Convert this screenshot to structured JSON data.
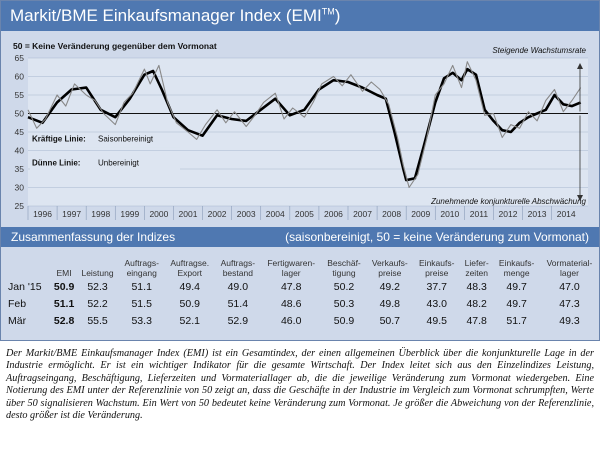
{
  "header": {
    "title": "Markit/BME Einkaufsmanager Index (EMI",
    "title_sup": "TM",
    "title_close": ")"
  },
  "chart_data": {
    "type": "line",
    "ylim": [
      25,
      65
    ],
    "yticks": [
      25,
      30,
      35,
      40,
      45,
      50,
      55,
      60,
      65
    ],
    "x_categories": [
      "1996",
      "1997",
      "1998",
      "1999",
      "2000",
      "2001",
      "2002",
      "2003",
      "2004",
      "2005",
      "2006",
      "2007",
      "2008",
      "2009",
      "2010",
      "2011",
      "2012",
      "2013",
      "2014"
    ],
    "reference_line": 50,
    "annotations": {
      "reference_note": "50 = Keine Veränderung gegenüber dem Vormonat",
      "top_right": "Steigende Wachstumsrate",
      "bottom_right": "Zunehmende konjunkturelle Abschwächung",
      "legend_bold_label": "Kräftige Linie:",
      "legend_bold_text": "Saisonbereinigt",
      "legend_thin_label": "Dünne Linie:",
      "legend_thin_text": "Unbereinigt"
    },
    "series": [
      {
        "name": "Saisonbereinigt",
        "style": "bold",
        "color": "#000000",
        "x": [
          1996.0,
          1996.5,
          1997.0,
          1997.5,
          1998.0,
          1998.5,
          1999.0,
          1999.5,
          2000.0,
          2000.3,
          2000.6,
          2001.0,
          2001.5,
          2002.0,
          2002.5,
          2003.0,
          2003.5,
          2004.0,
          2004.5,
          2005.0,
          2005.5,
          2006.0,
          2006.5,
          2007.0,
          2007.5,
          2008.0,
          2008.3,
          2008.6,
          2008.9,
          2009.0,
          2009.3,
          2009.6,
          2010.0,
          2010.3,
          2010.6,
          2010.9,
          2011.1,
          2011.4,
          2011.7,
          2012.0,
          2012.3,
          2012.6,
          2012.9,
          2013.2,
          2013.5,
          2013.8,
          2014.1,
          2014.4,
          2014.7,
          2015.0
        ],
        "values": [
          49.0,
          47.5,
          53.0,
          56.5,
          57.0,
          51.0,
          49.0,
          54.0,
          60.5,
          61.5,
          56.5,
          49.0,
          45.5,
          44.0,
          49.5,
          48.5,
          48.0,
          51.0,
          54.0,
          49.5,
          51.0,
          56.5,
          59.0,
          58.5,
          57.0,
          55.0,
          54.0,
          45.0,
          35.0,
          32.0,
          32.5,
          41.0,
          53.0,
          59.5,
          61.0,
          59.0,
          62.0,
          60.5,
          51.0,
          48.0,
          45.5,
          45.0,
          47.5,
          49.0,
          50.0,
          51.0,
          55.0,
          52.5,
          52.0,
          53.0
        ]
      },
      {
        "name": "Unbereinigt",
        "style": "thin",
        "color": "#888888",
        "x": [
          1996.0,
          1996.3,
          1996.6,
          1997.0,
          1997.3,
          1997.6,
          1998.0,
          1998.3,
          1998.6,
          1999.0,
          1999.3,
          1999.6,
          2000.0,
          2000.2,
          2000.5,
          2000.8,
          2001.1,
          2001.5,
          2001.8,
          2002.1,
          2002.5,
          2002.8,
          2003.1,
          2003.5,
          2003.8,
          2004.1,
          2004.5,
          2004.8,
          2005.1,
          2005.5,
          2005.8,
          2006.1,
          2006.5,
          2006.8,
          2007.1,
          2007.5,
          2007.8,
          2008.1,
          2008.4,
          2008.7,
          2008.9,
          2009.1,
          2009.4,
          2009.7,
          2010.0,
          2010.3,
          2010.6,
          2010.9,
          2011.1,
          2011.4,
          2011.7,
          2012.0,
          2012.3,
          2012.6,
          2012.9,
          2013.2,
          2013.5,
          2013.8,
          2014.1,
          2014.4,
          2014.7,
          2015.0
        ],
        "values": [
          51.0,
          46.0,
          48.5,
          55.0,
          52.0,
          58.0,
          55.0,
          53.5,
          50.0,
          47.0,
          53.0,
          55.5,
          62.0,
          58.0,
          63.0,
          53.0,
          47.5,
          45.0,
          43.0,
          47.0,
          51.0,
          47.5,
          50.5,
          46.5,
          49.5,
          53.0,
          55.5,
          48.5,
          51.5,
          49.0,
          53.0,
          58.0,
          60.0,
          57.5,
          60.5,
          56.0,
          58.5,
          56.5,
          52.5,
          43.5,
          36.0,
          30.0,
          33.5,
          43.0,
          55.0,
          58.0,
          63.0,
          57.0,
          64.0,
          59.0,
          49.5,
          50.0,
          43.5,
          47.0,
          46.0,
          50.5,
          48.0,
          53.5,
          56.5,
          50.5,
          53.5,
          57.0
        ]
      }
    ]
  },
  "summary": {
    "title": "Zusammenfassung der Indizes",
    "subtitle": "(saisonbereinigt, 50 = keine Veränderung zum Vormonat)",
    "columns": [
      {
        "line1": "",
        "line2": "EMI"
      },
      {
        "line1": "",
        "line2": "Leistung"
      },
      {
        "line1": "Auftrags-",
        "line2": "eingang"
      },
      {
        "line1": "Auftragse.",
        "line2": "Export"
      },
      {
        "line1": "Auftrags-",
        "line2": "bestand"
      },
      {
        "line1": "Fertigwaren-",
        "line2": "lager"
      },
      {
        "line1": "Beschäf-",
        "line2": "tigung"
      },
      {
        "line1": "Verkaufs-",
        "line2": "preise"
      },
      {
        "line1": "Einkaufs-",
        "line2": "preise"
      },
      {
        "line1": "Liefer-",
        "line2": "zeiten"
      },
      {
        "line1": "Einkaufs-",
        "line2": "menge"
      },
      {
        "line1": "Vormaterial-",
        "line2": "lager"
      }
    ],
    "rows": [
      {
        "label": "Jan '15",
        "values": [
          "50.9",
          "52.3",
          "51.1",
          "49.4",
          "49.0",
          "47.8",
          "50.2",
          "49.2",
          "37.7",
          "48.3",
          "49.7",
          "47.0"
        ]
      },
      {
        "label": "Feb",
        "values": [
          "51.1",
          "52.2",
          "51.5",
          "50.9",
          "51.4",
          "48.6",
          "50.3",
          "49.8",
          "43.0",
          "48.2",
          "49.7",
          "47.3"
        ]
      },
      {
        "label": "Mär",
        "values": [
          "52.8",
          "55.5",
          "53.3",
          "52.1",
          "52.9",
          "46.0",
          "50.9",
          "50.7",
          "49.5",
          "47.8",
          "51.7",
          "49.3"
        ]
      }
    ]
  },
  "note": "Der Markit/BME Einkaufsmanager Index (EMI) ist ein Gesamtindex, der einen allgemeinen Überblick über die konjunkturelle Lage in der Industrie ermöglicht. Er ist ein wichtiger Indikator für die gesamte Wirtschaft. Der Index leitet sich aus den Einzelindizes Leistung, Auftragseingang, Beschäftigung, Lieferzeiten und Vormateriallager ab, die die jeweilige Veränderung zum Vormonat wiedergeben. Eine Notierung des EMI unter der Referenzlinie von 50 zeigt an, dass die Geschäfte in der Industrie im Vergleich zum Vormonat schrumpften, Werte über 50 signalisieren Wachstum. Ein Wert von 50 bedeutet keine Veränderung zum Vormonat. Je größer die Abweichung von der Referenzlinie, desto größer ist die Veränderung."
}
